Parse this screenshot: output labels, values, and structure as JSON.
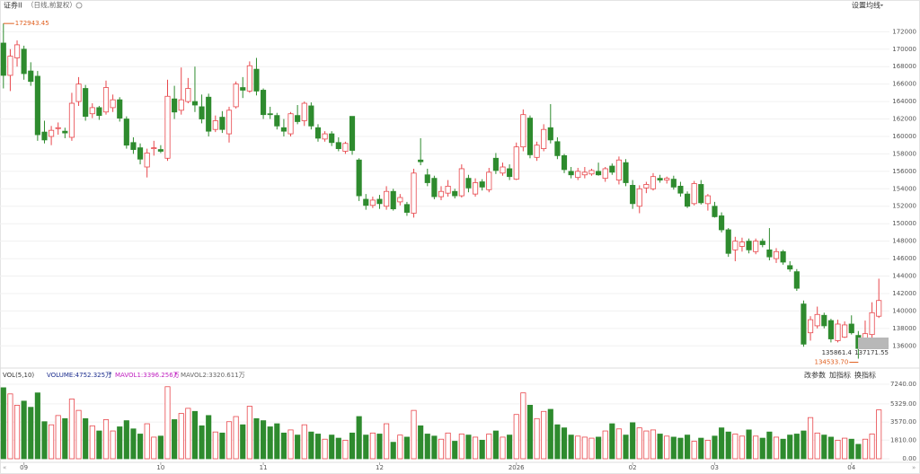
{
  "chart_data": [
    {
      "type": "candlestick",
      "title": "证券II",
      "subtitle": "（日线,前复权）",
      "menu": "设置均线",
      "up_color": "#e8474c",
      "down_color": "#2e8b2e",
      "ylim": [
        135000,
        174400
      ],
      "yticks": [
        136000,
        138000,
        140000,
        142000,
        144000,
        146000,
        148000,
        150000,
        152000,
        154000,
        156000,
        158000,
        160000,
        162000,
        164000,
        166000,
        168000,
        170000,
        172000
      ],
      "xticks": [
        {
          "value": 3,
          "label": "09"
        },
        {
          "value": 23,
          "label": "10"
        },
        {
          "value": 38,
          "label": "11"
        },
        {
          "value": 55,
          "label": "12"
        },
        {
          "value": 75,
          "label": "2026"
        },
        {
          "value": 92,
          "label": "02"
        },
        {
          "value": 104,
          "label": "03"
        },
        {
          "value": 124,
          "label": "04"
        }
      ],
      "high_label": "172943.45",
      "low_label": "134533.70",
      "range_low_label": "135861.4",
      "last_label": "137171.55",
      "ohlc": [
        [
          170700,
          172943.45,
          165500,
          167000
        ],
        [
          167000,
          170000,
          165200,
          169200
        ],
        [
          169000,
          171000,
          168000,
          170500
        ],
        [
          170000,
          170400,
          166500,
          167200
        ],
        [
          167500,
          168500,
          165800,
          166300
        ],
        [
          166900,
          167500,
          159500,
          160200
        ],
        [
          160500,
          161800,
          159200,
          159600
        ],
        [
          160000,
          161200,
          159000,
          160700
        ],
        [
          160900,
          161600,
          160200,
          161000
        ],
        [
          160600,
          161000,
          159800,
          160400
        ],
        [
          159900,
          165000,
          159500,
          163800
        ],
        [
          164000,
          166800,
          163500,
          166000
        ],
        [
          165500,
          165900,
          161800,
          162300
        ],
        [
          162600,
          163800,
          162100,
          163300
        ],
        [
          163300,
          163500,
          161900,
          162400
        ],
        [
          162800,
          166400,
          162500,
          165600
        ],
        [
          163300,
          164800,
          162800,
          164200
        ],
        [
          164200,
          164500,
          161700,
          162100
        ],
        [
          162000,
          162300,
          158600,
          159000
        ],
        [
          159300,
          159900,
          158000,
          158500
        ],
        [
          158700,
          159200,
          156800,
          157400
        ],
        [
          156500,
          158600,
          155300,
          158100
        ],
        [
          158600,
          159500,
          157800,
          158700
        ],
        [
          158500,
          159000,
          158100,
          158300
        ],
        [
          157500,
          166500,
          157200,
          164600
        ],
        [
          164300,
          165800,
          162000,
          162800
        ],
        [
          163000,
          167900,
          162500,
          164200
        ],
        [
          164000,
          166700,
          163800,
          165500
        ],
        [
          164000,
          168000,
          162800,
          163600
        ],
        [
          163400,
          164800,
          161500,
          162000
        ],
        [
          164500,
          164900,
          160000,
          160600
        ],
        [
          160800,
          162400,
          160500,
          161800
        ],
        [
          162200,
          162900,
          160400,
          160800
        ],
        [
          160300,
          163400,
          159300,
          163000
        ],
        [
          163400,
          166300,
          163200,
          166000
        ],
        [
          165600,
          166800,
          164400,
          165300
        ],
        [
          165200,
          168600,
          165000,
          168100
        ],
        [
          167700,
          169000,
          164700,
          165200
        ],
        [
          165300,
          165500,
          162000,
          162500
        ],
        [
          162600,
          163400,
          162000,
          162500
        ],
        [
          162400,
          162700,
          160800,
          161200
        ],
        [
          161000,
          162000,
          160000,
          160600
        ],
        [
          160300,
          162800,
          160000,
          162600
        ],
        [
          162400,
          163600,
          161400,
          161700
        ],
        [
          161800,
          164000,
          161200,
          163800
        ],
        [
          163500,
          163900,
          160800,
          161200
        ],
        [
          161000,
          161400,
          159400,
          159800
        ],
        [
          159700,
          160600,
          159400,
          160300
        ],
        [
          160300,
          160600,
          158900,
          159300
        ],
        [
          159300,
          159900,
          158300,
          158600
        ],
        [
          158300,
          159400,
          158000,
          159200
        ],
        [
          162300,
          162300,
          157900,
          158400
        ],
        [
          157300,
          157500,
          152600,
          153200
        ],
        [
          152800,
          153400,
          151600,
          152100
        ],
        [
          152100,
          153100,
          151800,
          152700
        ],
        [
          152800,
          153300,
          151700,
          152300
        ],
        [
          152000,
          154300,
          151600,
          153700
        ],
        [
          153700,
          154000,
          151500,
          151700
        ],
        [
          152500,
          153400,
          152100,
          153000
        ],
        [
          152200,
          152500,
          150900,
          151300
        ],
        [
          151200,
          156300,
          150700,
          155800
        ],
        [
          157300,
          159800,
          156700,
          157100
        ],
        [
          155600,
          156300,
          154300,
          154700
        ],
        [
          155200,
          155500,
          152800,
          153100
        ],
        [
          153100,
          154300,
          152700,
          153700
        ],
        [
          153500,
          155000,
          153100,
          154300
        ],
        [
          153700,
          154000,
          152900,
          153200
        ],
        [
          153200,
          156800,
          153000,
          156300
        ],
        [
          155200,
          155600,
          153600,
          154100
        ],
        [
          153400,
          155200,
          153100,
          154700
        ],
        [
          154800,
          155100,
          153800,
          154200
        ],
        [
          153900,
          156400,
          153600,
          155900
        ],
        [
          157500,
          158100,
          155700,
          156100
        ],
        [
          155800,
          157000,
          155500,
          156500
        ],
        [
          156300,
          156800,
          155000,
          155400
        ],
        [
          155100,
          159300,
          155000,
          158800
        ],
        [
          158800,
          163100,
          158300,
          162500
        ],
        [
          162100,
          162400,
          157500,
          157900
        ],
        [
          157600,
          159400,
          157200,
          159000
        ],
        [
          158600,
          161400,
          158300,
          160800
        ],
        [
          161000,
          163700,
          159200,
          159600
        ],
        [
          159400,
          159900,
          157400,
          157800
        ],
        [
          157800,
          158000,
          155800,
          156200
        ],
        [
          156000,
          156500,
          155200,
          155600
        ],
        [
          155300,
          156400,
          155000,
          156000
        ],
        [
          155600,
          156500,
          155200,
          155900
        ],
        [
          155700,
          156300,
          155500,
          156100
        ],
        [
          156000,
          157000,
          155500,
          155600
        ],
        [
          155200,
          156500,
          154800,
          156300
        ],
        [
          156600,
          156900,
          155600,
          155900
        ],
        [
          155000,
          157700,
          154500,
          157300
        ],
        [
          157000,
          157400,
          154300,
          154700
        ],
        [
          154400,
          155000,
          151700,
          152300
        ],
        [
          152000,
          154400,
          151200,
          154000
        ],
        [
          154100,
          154800,
          153500,
          154500
        ],
        [
          154000,
          155800,
          153800,
          155400
        ],
        [
          155200,
          155600,
          154700,
          155000
        ],
        [
          155000,
          155400,
          154600,
          155200
        ],
        [
          155100,
          155500,
          153900,
          154200
        ],
        [
          154300,
          154800,
          153100,
          153500
        ],
        [
          153400,
          153700,
          151800,
          152000
        ],
        [
          152300,
          154900,
          152100,
          154600
        ],
        [
          154500,
          155000,
          152200,
          152400
        ],
        [
          152300,
          153400,
          151500,
          153200
        ],
        [
          152000,
          152500,
          150700,
          150800
        ],
        [
          150900,
          151300,
          149000,
          149300
        ],
        [
          149300,
          149500,
          146200,
          146600
        ],
        [
          147000,
          148500,
          145700,
          148000
        ],
        [
          147400,
          148400,
          146800,
          147900
        ],
        [
          148000,
          148300,
          146600,
          147000
        ],
        [
          146800,
          148300,
          146500,
          148000
        ],
        [
          148000,
          148300,
          147300,
          147600
        ],
        [
          147000,
          149500,
          145800,
          146200
        ],
        [
          146000,
          147200,
          145500,
          146800
        ],
        [
          146800,
          147000,
          145300,
          145600
        ],
        [
          145200,
          145700,
          144500,
          144800
        ],
        [
          144500,
          144800,
          142300,
          142600
        ],
        [
          140800,
          141200,
          135900,
          136200
        ],
        [
          137500,
          139400,
          136600,
          139000
        ],
        [
          138300,
          140500,
          138000,
          139600
        ],
        [
          139500,
          139800,
          138000,
          138300
        ],
        [
          138900,
          139100,
          136400,
          136800
        ],
        [
          136600,
          139000,
          136400,
          138500
        ],
        [
          137000,
          138800,
          136900,
          138400
        ],
        [
          138500,
          139500,
          137300,
          137500
        ],
        [
          137200,
          137700,
          134533.7,
          135700
        ],
        [
          135800,
          138900,
          135600,
          137400
        ],
        [
          137300,
          141000,
          136900,
          139800
        ],
        [
          139400,
          143700,
          139200,
          141200
        ]
      ]
    },
    {
      "type": "bar",
      "indicator": "VOL(5,10)",
      "volume_label": "VOLUME:4752.325万",
      "mavol1_label": "MAVOL1:3396.256万",
      "mavol2_label": "MAVOL2:3320.611万",
      "buttons": [
        "改参数",
        "加指标",
        "换指标"
      ],
      "ylim": [
        0,
        7940
      ],
      "yticks": [
        {
          "value": 0,
          "label": "0.00"
        },
        {
          "value": 1810,
          "label": "1810.00"
        },
        {
          "value": 3570,
          "label": "3570.00"
        },
        {
          "value": 5329,
          "label": "5329.00"
        },
        {
          "value": 7240,
          "label": "7240.00"
        }
      ],
      "values": [
        6900,
        6300,
        5200,
        5600,
        5000,
        6400,
        3600,
        3300,
        4200,
        3900,
        5800,
        4700,
        3900,
        3200,
        2700,
        3800,
        2700,
        3100,
        3700,
        2900,
        2400,
        3400,
        2100,
        2200,
        7000,
        3800,
        4400,
        4900,
        4600,
        3200,
        4200,
        2600,
        2500,
        3600,
        4100,
        3300,
        5100,
        3900,
        3700,
        3100,
        3400,
        2500,
        2800,
        2300,
        3300,
        2600,
        2400,
        1900,
        2300,
        2000,
        1800,
        2500,
        4100,
        2300,
        2500,
        2400,
        3400,
        1600,
        2300,
        2100,
        4700,
        3200,
        2400,
        2200,
        1900,
        2500,
        1700,
        2400,
        2300,
        2100,
        1800,
        2400,
        2700,
        2100,
        2300,
        4300,
        6400,
        5200,
        3900,
        4600,
        4800,
        3300,
        3000,
        2300,
        2200,
        2100,
        2000,
        2100,
        2700,
        3400,
        2900,
        2300,
        3500,
        3000,
        2700,
        2800,
        2400,
        2200,
        2100,
        2000,
        2300,
        1700,
        2000,
        1800,
        2200,
        3000,
        2600,
        2400,
        2200,
        2800,
        2200,
        2000,
        2600,
        2100,
        1900,
        2300,
        2400,
        2700,
        4000,
        2500,
        2300,
        2100,
        1800,
        2000,
        1900,
        1400,
        1900,
        2400,
        4750
      ]
    }
  ]
}
